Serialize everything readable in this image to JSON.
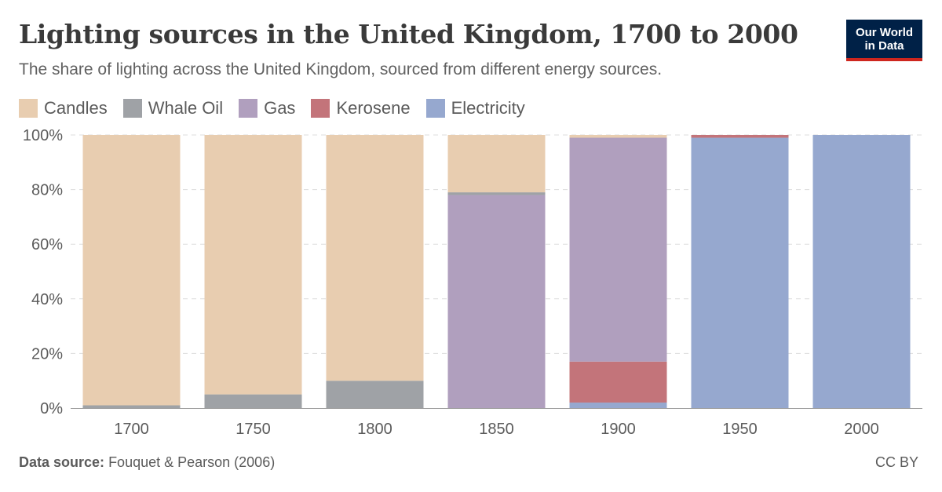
{
  "title": "Lighting sources in the United Kingdom, 1700 to 2000",
  "subtitle": "The share of lighting across the United Kingdom, sourced from different energy sources.",
  "logo": {
    "line1": "Our World",
    "line2": "in Data"
  },
  "footer": {
    "source_label": "Data source:",
    "source_text": "Fouquet & Pearson (2006)",
    "license": "CC BY"
  },
  "chart_data": {
    "type": "bar",
    "stacked": true,
    "categories": [
      "1700",
      "1750",
      "1800",
      "1850",
      "1900",
      "1950",
      "2000"
    ],
    "series": [
      {
        "name": "Electricity",
        "color": "#96a8cf",
        "values": [
          0,
          0,
          0,
          0,
          2,
          99,
          100
        ]
      },
      {
        "name": "Kerosene",
        "color": "#c3747a",
        "values": [
          0,
          0,
          0,
          0,
          15,
          1,
          0
        ]
      },
      {
        "name": "Gas",
        "color": "#b09fbe",
        "values": [
          0,
          0,
          0,
          78,
          82,
          0,
          0
        ]
      },
      {
        "name": "Whale Oil",
        "color": "#9fa2a6",
        "values": [
          1,
          5,
          10,
          1,
          0,
          0,
          0
        ]
      },
      {
        "name": "Candles",
        "color": "#e8cdb0",
        "values": [
          99,
          95,
          90,
          21,
          1,
          0,
          0
        ]
      }
    ],
    "legend_order": [
      "Candles",
      "Whale Oil",
      "Gas",
      "Kerosene",
      "Electricity"
    ],
    "y_ticks": [
      "0%",
      "20%",
      "40%",
      "60%",
      "80%",
      "100%"
    ],
    "ylim": [
      0,
      100
    ],
    "grid": true,
    "legend_position": "top-left"
  }
}
